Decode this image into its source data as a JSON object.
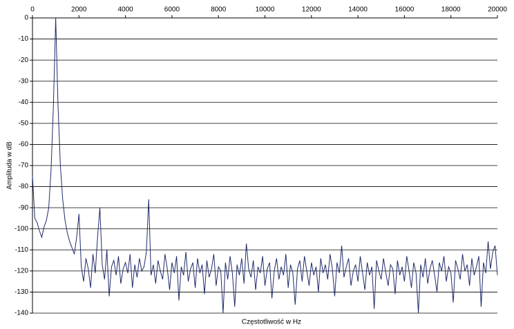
{
  "chart_data": {
    "type": "line",
    "x_label": "Częstotliwość w Hz",
    "y_label": "Amplituda w dB",
    "xlim": [
      0,
      20000
    ],
    "xticks": [
      0,
      2000,
      4000,
      6000,
      8000,
      10000,
      12000,
      14000,
      16000,
      18000,
      20000
    ],
    "ylim": [
      -140,
      0
    ],
    "yticks": [
      0,
      -10,
      -20,
      -30,
      -40,
      -50,
      -60,
      -70,
      -80,
      -90,
      -100,
      -110,
      -120,
      -130,
      -140
    ],
    "grid": true,
    "series": [
      {
        "color": "#1f2a6b",
        "x": [
          0,
          100,
          200,
          300,
          400,
          500,
          600,
          700,
          800,
          900,
          1000,
          1100,
          1200,
          1300,
          1400,
          1500,
          1600,
          1700,
          1800,
          1900,
          2000,
          2100,
          2200,
          2300,
          2400,
          2500,
          2600,
          2700,
          2800,
          2900,
          3000,
          3100,
          3200,
          3300,
          3400,
          3500,
          3600,
          3700,
          3800,
          3900,
          4000,
          4100,
          4200,
          4300,
          4400,
          4500,
          4600,
          4700,
          4800,
          4900,
          5000,
          5100,
          5200,
          5300,
          5400,
          5500,
          5600,
          5700,
          5800,
          5900,
          6000,
          6100,
          6200,
          6300,
          6400,
          6500,
          6600,
          6700,
          6800,
          6900,
          7000,
          7100,
          7200,
          7300,
          7400,
          7500,
          7600,
          7700,
          7800,
          7900,
          8000,
          8100,
          8200,
          8300,
          8400,
          8500,
          8600,
          8700,
          8800,
          8900,
          9000,
          9100,
          9200,
          9300,
          9400,
          9500,
          9600,
          9700,
          9800,
          9900,
          10000,
          10100,
          10200,
          10300,
          10400,
          10500,
          10600,
          10700,
          10800,
          10900,
          11000,
          11100,
          11200,
          11300,
          11400,
          11500,
          11600,
          11700,
          11800,
          11900,
          12000,
          12100,
          12200,
          12300,
          12400,
          12500,
          12600,
          12700,
          12800,
          12900,
          13000,
          13100,
          13200,
          13300,
          13400,
          13500,
          13600,
          13700,
          13800,
          13900,
          14000,
          14100,
          14200,
          14300,
          14400,
          14500,
          14600,
          14700,
          14800,
          14900,
          15000,
          15100,
          15200,
          15300,
          15400,
          15500,
          15600,
          15700,
          15800,
          15900,
          16000,
          16100,
          16200,
          16300,
          16400,
          16500,
          16600,
          16700,
          16800,
          16900,
          17000,
          17100,
          17200,
          17300,
          17400,
          17500,
          17600,
          17700,
          17800,
          17900,
          18000,
          18100,
          18200,
          18300,
          18400,
          18500,
          18600,
          18700,
          18800,
          18900,
          19000,
          19100,
          19200,
          19300,
          19400,
          19500,
          19600,
          19700,
          19800,
          19900,
          20000
        ],
        "values": [
          -75,
          -95,
          -97,
          -101,
          -104,
          -99,
          -96,
          -90,
          -72,
          -42,
          0,
          -42,
          -70,
          -86,
          -96,
          -102,
          -106,
          -109,
          -112,
          -104,
          -93,
          -118,
          -125,
          -114,
          -119,
          -128,
          -112,
          -121,
          -104,
          -90,
          -117,
          -124,
          -110,
          -132,
          -118,
          -115,
          -122,
          -113,
          -126,
          -119,
          -116,
          -121,
          -112,
          -128,
          -117,
          -123,
          -114,
          -120,
          -118,
          -111,
          -86,
          -122,
          -117,
          -126,
          -115,
          -120,
          -124,
          -112,
          -119,
          -129,
          -116,
          -121,
          -113,
          -134,
          -118,
          -122,
          -111,
          -125,
          -119,
          -116,
          -128,
          -114,
          -121,
          -117,
          -131,
          -115,
          -123,
          -119,
          -112,
          -127,
          -118,
          -120,
          -140,
          -116,
          -124,
          -113,
          -121,
          -137,
          -117,
          -122,
          -114,
          -126,
          -107,
          -119,
          -123,
          -115,
          -129,
          -118,
          -121,
          -113,
          -127,
          -119,
          -116,
          -133,
          -120,
          -114,
          -124,
          -118,
          -122,
          -112,
          -128,
          -117,
          -121,
          -136,
          -119,
          -115,
          -125,
          -113,
          -120,
          -127,
          -116,
          -122,
          -118,
          -130,
          -114,
          -121,
          -117,
          -124,
          -112,
          -119,
          -132,
          -116,
          -121,
          -108,
          -123,
          -118,
          -114,
          -127,
          -120,
          -117,
          -125,
          -113,
          -121,
          -129,
          -116,
          -122,
          -118,
          -138,
          -115,
          -120,
          -124,
          -114,
          -121,
          -127,
          -117,
          -119,
          -131,
          -115,
          -122,
          -118,
          -125,
          -113,
          -120,
          -128,
          -116,
          -121,
          -140,
          -117,
          -123,
          -114,
          -126,
          -119,
          -115,
          -122,
          -130,
          -116,
          -120,
          -113,
          -125,
          -118,
          -121,
          -135,
          -115,
          -119,
          -124,
          -112,
          -120,
          -117,
          -127,
          -114,
          -122,
          -118,
          -113,
          -137,
          -116,
          -121,
          -106,
          -119,
          -111,
          -108,
          -122
        ]
      }
    ]
  }
}
